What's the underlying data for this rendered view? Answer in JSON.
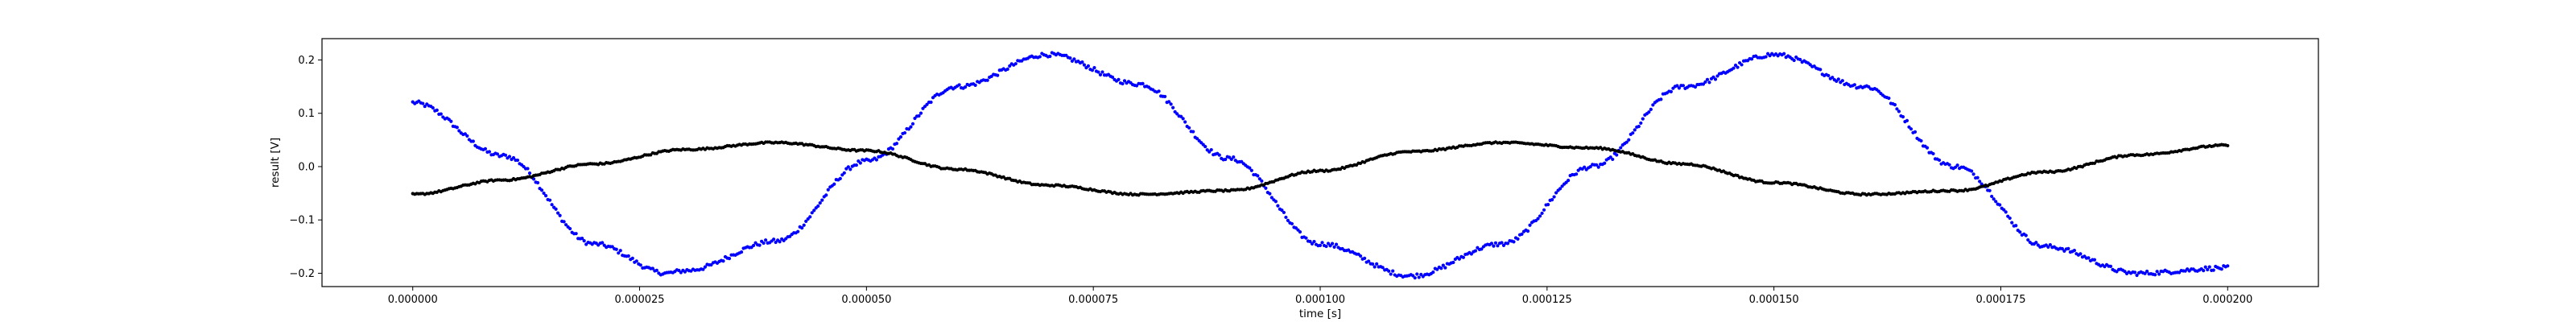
{
  "chart_data": {
    "type": "scatter",
    "xlabel": "time [s]",
    "ylabel": "result [V]",
    "xlim": [
      -1e-05,
      0.00021
    ],
    "ylim": [
      -0.225,
      0.24
    ],
    "x_ticks": [
      0,
      2.5e-05,
      5e-05,
      7.5e-05,
      0.0001,
      0.000125,
      0.00015,
      0.000175,
      0.0002
    ],
    "x_tick_labels": [
      "0.000000",
      "0.000025",
      "0.000050",
      "0.000075",
      "0.000100",
      "0.000125",
      "0.000150",
      "0.000175",
      "0.000200"
    ],
    "y_ticks": [
      -0.2,
      -0.1,
      0.0,
      0.1,
      0.2
    ],
    "y_tick_labels": [
      "−0.2",
      "−0.1",
      "0.0",
      "0.1",
      "0.2"
    ],
    "grid": false,
    "series": [
      {
        "color": "#0000ff",
        "marker": "dot",
        "x": [
          0,
          1e-05,
          2e-05,
          2.8e-05,
          3e-05,
          4e-05,
          5e-05,
          6e-05,
          7e-05,
          8e-05,
          9e-05,
          0.0001,
          0.00011,
          0.00012,
          0.00013,
          0.00014,
          0.00015,
          0.00016,
          0.00017,
          0.00018,
          0.00019,
          0.0002
        ],
        "y": [
          0.12,
          0.02,
          -0.145,
          -0.2,
          -0.195,
          -0.14,
          0.01,
          0.15,
          0.21,
          0.155,
          0.015,
          -0.145,
          -0.205,
          -0.145,
          0.0,
          0.15,
          0.21,
          0.15,
          0.0,
          -0.15,
          -0.2,
          -0.19
        ]
      },
      {
        "color": "#000000",
        "marker": "dot",
        "x": [
          0,
          1e-05,
          2e-05,
          3e-05,
          4e-05,
          5e-05,
          6e-05,
          7e-05,
          8e-05,
          9e-05,
          0.0001,
          0.00011,
          0.00012,
          0.00013,
          0.00014,
          0.00015,
          0.00016,
          0.00017,
          0.00018,
          0.00019,
          0.0002
        ],
        "y": [
          -0.052,
          -0.025,
          0.005,
          0.032,
          0.045,
          0.03,
          -0.005,
          -0.035,
          -0.052,
          -0.045,
          -0.008,
          0.028,
          0.045,
          0.035,
          0.005,
          -0.03,
          -0.052,
          -0.045,
          -0.01,
          0.022,
          0.04
        ]
      }
    ]
  }
}
